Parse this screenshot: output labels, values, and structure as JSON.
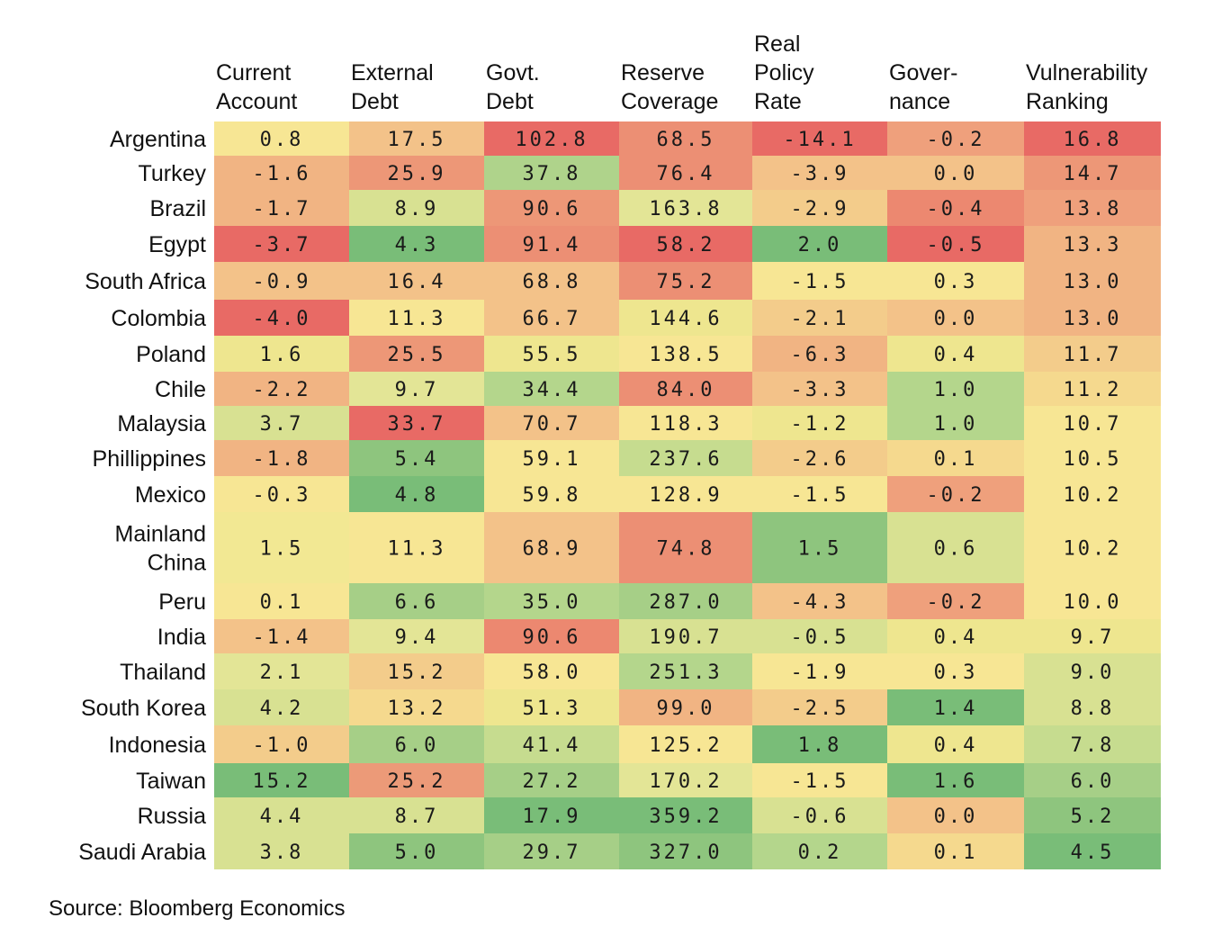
{
  "chart_data": {
    "type": "heatmap",
    "columns": [
      [
        "Current",
        "Account"
      ],
      [
        "External",
        "Debt"
      ],
      [
        "Govt.",
        "Debt"
      ],
      [
        "Reserve",
        "Coverage"
      ],
      [
        "Real",
        "Policy",
        "Rate"
      ],
      [
        "Gover-",
        "nance"
      ],
      [
        "Vulnerability",
        "Ranking"
      ]
    ],
    "rows": [
      [
        "Argentina"
      ],
      [
        "Turkey"
      ],
      [
        "Brazil"
      ],
      [
        "Egypt"
      ],
      [
        "South Africa"
      ],
      [
        "Colombia"
      ],
      [
        "Poland"
      ],
      [
        "Chile"
      ],
      [
        "Malaysia"
      ],
      [
        "Phillippines"
      ],
      [
        "Mexico"
      ],
      [
        "Mainland",
        "China"
      ],
      [
        "Peru"
      ],
      [
        "India"
      ],
      [
        "Thailand"
      ],
      [
        "South Korea"
      ],
      [
        "Indonesia"
      ],
      [
        "Taiwan"
      ],
      [
        "Russia"
      ],
      [
        "Saudi Arabia"
      ]
    ],
    "values": [
      [
        "0.8",
        "17.5",
        "102.8",
        "68.5",
        "-14.1",
        "-0.2",
        "16.8"
      ],
      [
        "-1.6",
        "25.9",
        "37.8",
        "76.4",
        "-3.9",
        "0.0",
        "14.7"
      ],
      [
        "-1.7",
        "8.9",
        "90.6",
        "163.8",
        "-2.9",
        "-0.4",
        "13.8"
      ],
      [
        "-3.7",
        "4.3",
        "91.4",
        "58.2",
        "2.0",
        "-0.5",
        "13.3"
      ],
      [
        "-0.9",
        "16.4",
        "68.8",
        "75.2",
        "-1.5",
        "0.3",
        "13.0"
      ],
      [
        "-4.0",
        "11.3",
        "66.7",
        "144.6",
        "-2.1",
        "0.0",
        "13.0"
      ],
      [
        "1.6",
        "25.5",
        "55.5",
        "138.5",
        "-6.3",
        "0.4",
        "11.7"
      ],
      [
        "-2.2",
        "9.7",
        "34.4",
        "84.0",
        "-3.3",
        "1.0",
        "11.2"
      ],
      [
        "3.7",
        "33.7",
        "70.7",
        "118.3",
        "-1.2",
        "1.0",
        "10.7"
      ],
      [
        "-1.8",
        "5.4",
        "59.1",
        "237.6",
        "-2.6",
        "0.1",
        "10.5"
      ],
      [
        "-0.3",
        "4.8",
        "59.8",
        "128.9",
        "-1.5",
        "-0.2",
        "10.2"
      ],
      [
        "1.5",
        "11.3",
        "68.9",
        "74.8",
        "1.5",
        "0.6",
        "10.2"
      ],
      [
        "0.1",
        "6.6",
        "35.0",
        "287.0",
        "-4.3",
        "-0.2",
        "10.0"
      ],
      [
        "-1.4",
        "9.4",
        "90.6",
        "190.7",
        "-0.5",
        "0.4",
        "9.7"
      ],
      [
        "2.1",
        "15.2",
        "58.0",
        "251.3",
        "-1.9",
        "0.3",
        "9.0"
      ],
      [
        "4.2",
        "13.2",
        "51.3",
        "99.0",
        "-2.5",
        "1.4",
        "8.8"
      ],
      [
        "-1.0",
        "6.0",
        "41.4",
        "125.2",
        "1.8",
        "0.4",
        "7.8"
      ],
      [
        "15.2",
        "25.2",
        "27.2",
        "170.2",
        "-1.5",
        "1.6",
        "6.0"
      ],
      [
        "4.4",
        "8.7",
        "17.9",
        "359.2",
        "-0.6",
        "0.0",
        "5.2"
      ],
      [
        "3.8",
        "5.0",
        "29.7",
        "327.0",
        "0.2",
        "0.1",
        "4.5"
      ]
    ],
    "color_scale": {
      "red": "#e86a65",
      "orange": "#f0a47e",
      "yellow": "#f7e694",
      "light_green": "#cfdd92",
      "green": "#79bd78"
    },
    "cell_colors": [
      [
        "#f7e694",
        "#f3c289",
        "#e86a65",
        "#ec8f74",
        "#e86a65",
        "#efa07c",
        "#e86a65"
      ],
      [
        "#f1b483",
        "#ed9777",
        "#afd38b",
        "#ec8f74",
        "#f3c289",
        "#f3c289",
        "#ed9777"
      ],
      [
        "#f1b483",
        "#d8e192",
        "#ed9777",
        "#e3e596",
        "#f3cc8b",
        "#ec8870",
        "#efa07c"
      ],
      [
        "#e86a65",
        "#79bd78",
        "#ec8f74",
        "#e86a65",
        "#79bd78",
        "#e86a65",
        "#f1b483"
      ],
      [
        "#f3c289",
        "#f3c289",
        "#f3c289",
        "#ec8f74",
        "#f7e694",
        "#f7e694",
        "#f1b483"
      ],
      [
        "#e86a65",
        "#f7e694",
        "#f3c289",
        "#eee68f",
        "#f3cc8b",
        "#f3c289",
        "#f1b483"
      ],
      [
        "#eee68f",
        "#ed9777",
        "#eee68f",
        "#f7e694",
        "#f1b483",
        "#eee68f",
        "#f3cc8b"
      ],
      [
        "#f1b483",
        "#e3e596",
        "#b4d68c",
        "#ec8f74",
        "#f3c289",
        "#b4d68c",
        "#f5d98e"
      ],
      [
        "#d8e192",
        "#e86a65",
        "#f3c289",
        "#f7e694",
        "#eee68f",
        "#b4d68c",
        "#f7e694"
      ],
      [
        "#f1b483",
        "#8ec57e",
        "#f7e694",
        "#c6dc8f",
        "#f3cc8b",
        "#f5d98e",
        "#f7e694"
      ],
      [
        "#f7e694",
        "#79bd78",
        "#f7e694",
        "#f7e694",
        "#f7e694",
        "#efa07c",
        "#f7e694"
      ],
      [
        "#f2e893",
        "#f7e694",
        "#f3c289",
        "#ec8f74",
        "#8ec57e",
        "#d8e192",
        "#f7e694"
      ],
      [
        "#f7e694",
        "#a6cf87",
        "#b4d68c",
        "#a6cf87",
        "#f3c289",
        "#efa07c",
        "#f7e694"
      ],
      [
        "#f3c289",
        "#e3e596",
        "#ec8870",
        "#d8e192",
        "#d8e192",
        "#eee68f",
        "#eee68f"
      ],
      [
        "#e3e596",
        "#f3cc8b",
        "#f7e694",
        "#b4d68c",
        "#f7e694",
        "#f7e694",
        "#d8e192"
      ],
      [
        "#d8e192",
        "#f5d98e",
        "#eee68f",
        "#f1b483",
        "#f3cc8b",
        "#79bd78",
        "#d8e192"
      ],
      [
        "#f3cc8b",
        "#a6cf87",
        "#c6dc8f",
        "#f7e694",
        "#79bd78",
        "#eee68f",
        "#c6dc8f"
      ],
      [
        "#79bd78",
        "#ec9a78",
        "#a6cf87",
        "#e3e596",
        "#f7e694",
        "#79bd78",
        "#a6cf87"
      ],
      [
        "#d8e192",
        "#d8e192",
        "#79bd78",
        "#79bd78",
        "#d8e192",
        "#f3c289",
        "#8ec57e"
      ],
      [
        "#d8e192",
        "#8ec57e",
        "#a6cf87",
        "#8ec57e",
        "#b4d68c",
        "#f5d98e",
        "#79bd78"
      ]
    ]
  },
  "source": "Source: Bloomberg Economics"
}
